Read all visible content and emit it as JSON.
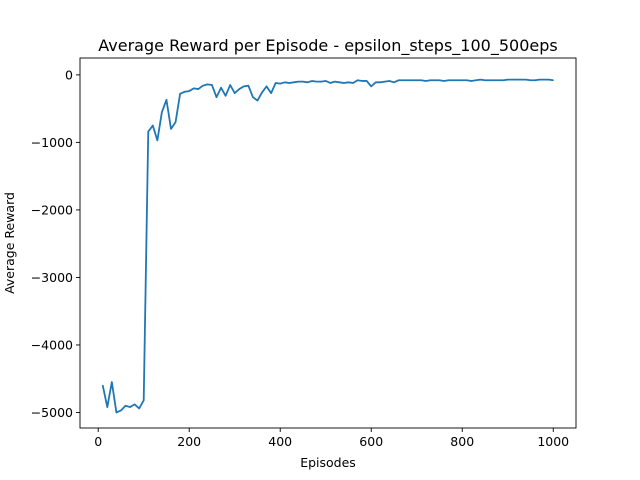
{
  "chart_data": {
    "type": "line",
    "title": "Average Reward per Episode - epsilon_steps_100_500eps",
    "xlabel": "Episodes",
    "ylabel": "Average Reward",
    "xlim": [
      -40,
      1050
    ],
    "ylim": [
      -5230,
      250
    ],
    "xticks": [
      0,
      200,
      400,
      600,
      800,
      1000
    ],
    "xtick_labels": [
      "0",
      "200",
      "400",
      "600",
      "800",
      "1000"
    ],
    "yticks": [
      0,
      -1000,
      -2000,
      -3000,
      -4000,
      -5000
    ],
    "ytick_labels": [
      "0",
      "−1000",
      "−2000",
      "−3000",
      "−4000",
      "−5000"
    ],
    "grid": false,
    "series": [
      {
        "color": "#1f77b4",
        "x": [
          10,
          20,
          30,
          40,
          50,
          60,
          70,
          80,
          90,
          100,
          110,
          120,
          130,
          140,
          150,
          160,
          170,
          180,
          190,
          200,
          210,
          220,
          230,
          240,
          250,
          260,
          270,
          280,
          290,
          300,
          310,
          320,
          330,
          340,
          350,
          360,
          370,
          380,
          390,
          400,
          410,
          420,
          430,
          440,
          450,
          460,
          470,
          480,
          490,
          500,
          510,
          520,
          530,
          540,
          550,
          560,
          570,
          580,
          590,
          600,
          610,
          620,
          630,
          640,
          650,
          660,
          670,
          680,
          690,
          700,
          710,
          720,
          730,
          740,
          750,
          760,
          770,
          780,
          790,
          800,
          810,
          820,
          830,
          840,
          850,
          860,
          870,
          880,
          890,
          900,
          910,
          920,
          930,
          940,
          950,
          960,
          970,
          980,
          990,
          1000
        ],
        "y": [
          -4600,
          -4920,
          -4550,
          -5000,
          -4970,
          -4900,
          -4920,
          -4880,
          -4940,
          -4820,
          -840,
          -750,
          -970,
          -550,
          -370,
          -800,
          -700,
          -280,
          -250,
          -240,
          -200,
          -210,
          -160,
          -140,
          -150,
          -330,
          -190,
          -310,
          -150,
          -270,
          -210,
          -170,
          -160,
          -330,
          -380,
          -260,
          -170,
          -270,
          -120,
          -130,
          -110,
          -120,
          -110,
          -100,
          -100,
          -110,
          -90,
          -100,
          -100,
          -90,
          -120,
          -100,
          -110,
          -120,
          -110,
          -120,
          -80,
          -90,
          -90,
          -170,
          -110,
          -110,
          -100,
          -90,
          -110,
          -80,
          -80,
          -80,
          -80,
          -80,
          -80,
          -90,
          -80,
          -80,
          -80,
          -90,
          -80,
          -80,
          -80,
          -80,
          -80,
          -90,
          -80,
          -70,
          -80,
          -80,
          -80,
          -80,
          -80,
          -70,
          -70,
          -70,
          -70,
          -70,
          -80,
          -80,
          -70,
          -70,
          -70,
          -80
        ]
      }
    ]
  }
}
